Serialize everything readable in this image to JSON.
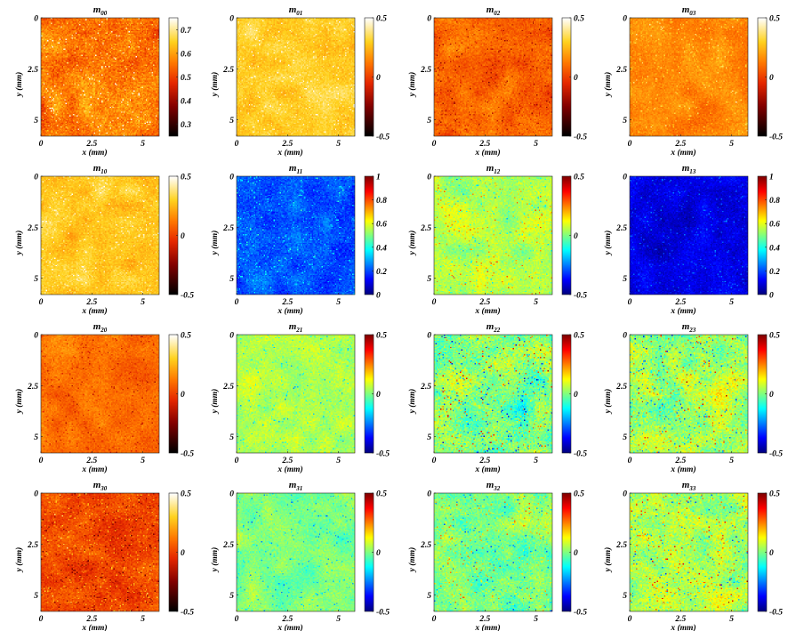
{
  "chart_data": {
    "type": "heatmap",
    "layout": "4x4 grid of Mueller matrix element maps",
    "grid": false,
    "x_ticks": [
      "0",
      "2.5",
      "5"
    ],
    "y_ticks": [
      "0",
      "2.5",
      "5"
    ],
    "xlabel": "x (mm)",
    "ylabel": "y (mm)",
    "panels": [
      {
        "base": "m",
        "sub": "00",
        "colormap": "hot",
        "clim": [
          0.25,
          0.75
        ],
        "cbar_ticks": [
          "0.7",
          "0.6",
          "0.5",
          "0.4",
          "0.3"
        ],
        "mean": 0.56,
        "spread": 0.09,
        "feature": "bright"
      },
      {
        "base": "m",
        "sub": "01",
        "colormap": "hot",
        "clim": [
          -0.5,
          0.5
        ],
        "cbar_ticks": [
          "0.5",
          "0",
          "-0.5"
        ],
        "mean": 0.3,
        "spread": 0.1,
        "feature": "bright"
      },
      {
        "base": "m",
        "sub": "02",
        "colormap": "hot",
        "clim": [
          -0.5,
          0.5
        ],
        "cbar_ticks": [
          "0.5",
          "0",
          "-0.5"
        ],
        "mean": 0.08,
        "spread": 0.12,
        "feature": "dark"
      },
      {
        "base": "m",
        "sub": "03",
        "colormap": "hot",
        "clim": [
          -0.5,
          0.5
        ],
        "cbar_ticks": [
          "0.5",
          "0",
          "-0.5"
        ],
        "mean": 0.15,
        "spread": 0.1,
        "feature": "bright"
      },
      {
        "base": "m",
        "sub": "10",
        "colormap": "hot",
        "clim": [
          -0.5,
          0.5
        ],
        "cbar_ticks": [
          "0.5",
          "0",
          "-0.5"
        ],
        "mean": 0.28,
        "spread": 0.1,
        "feature": "bright"
      },
      {
        "base": "m",
        "sub": "11",
        "colormap": "jet",
        "clim": [
          0,
          1
        ],
        "cbar_ticks": [
          "1",
          "0.8",
          "0.6",
          "0.4",
          "0.2",
          "0"
        ],
        "mean": 0.2,
        "spread": 0.09,
        "feature": "bright"
      },
      {
        "base": "m",
        "sub": "12",
        "colormap": "jet",
        "clim": [
          -0.5,
          0.5
        ],
        "cbar_ticks": [
          "0.5",
          "0",
          "-0.5"
        ],
        "mean": 0.04,
        "spread": 0.09,
        "feature": "mixed"
      },
      {
        "base": "m",
        "sub": "13",
        "colormap": "jet",
        "clim": [
          0,
          1
        ],
        "cbar_ticks": [
          "1",
          "0.8",
          "0.6",
          "0.4",
          "0.2",
          "0"
        ],
        "mean": 0.1,
        "spread": 0.07,
        "feature": "bright"
      },
      {
        "base": "m",
        "sub": "20",
        "colormap": "hot",
        "clim": [
          -0.5,
          0.5
        ],
        "cbar_ticks": [
          "0.5",
          "0",
          "-0.5"
        ],
        "mean": 0.1,
        "spread": 0.1,
        "feature": "dark"
      },
      {
        "base": "m",
        "sub": "21",
        "colormap": "jet",
        "clim": [
          -0.5,
          0.5
        ],
        "cbar_ticks": [
          "0.5",
          "0",
          "-0.5"
        ],
        "mean": 0.05,
        "spread": 0.08,
        "feature": "blue"
      },
      {
        "base": "m",
        "sub": "22",
        "colormap": "jet",
        "clim": [
          -0.5,
          0.5
        ],
        "cbar_ticks": [
          "0.5",
          "0",
          "-0.5"
        ],
        "mean": 0.0,
        "spread": 0.15,
        "feature": "mixed"
      },
      {
        "base": "m",
        "sub": "23",
        "colormap": "jet",
        "clim": [
          -0.5,
          0.5
        ],
        "cbar_ticks": [
          "0.5",
          "0",
          "-0.5"
        ],
        "mean": 0.04,
        "spread": 0.14,
        "feature": "mixed"
      },
      {
        "base": "m",
        "sub": "30",
        "colormap": "hot",
        "clim": [
          -0.5,
          0.5
        ],
        "cbar_ticks": [
          "0.5",
          "0",
          "-0.5"
        ],
        "mean": 0.02,
        "spread": 0.12,
        "feature": "relief"
      },
      {
        "base": "m",
        "sub": "31",
        "colormap": "jet",
        "clim": [
          -0.5,
          0.5
        ],
        "cbar_ticks": [
          "0.5",
          "0",
          "-0.5"
        ],
        "mean": 0.0,
        "spread": 0.08,
        "feature": "blue"
      },
      {
        "base": "m",
        "sub": "32",
        "colormap": "jet",
        "clim": [
          -0.5,
          0.5
        ],
        "cbar_ticks": [
          "0.5",
          "0",
          "-0.5"
        ],
        "mean": 0.0,
        "spread": 0.11,
        "feature": "mixed"
      },
      {
        "base": "m",
        "sub": "33",
        "colormap": "jet",
        "clim": [
          -0.5,
          0.5
        ],
        "cbar_ticks": [
          "0.5",
          "0",
          "-0.5"
        ],
        "mean": 0.04,
        "spread": 0.13,
        "feature": "mixed"
      }
    ]
  }
}
